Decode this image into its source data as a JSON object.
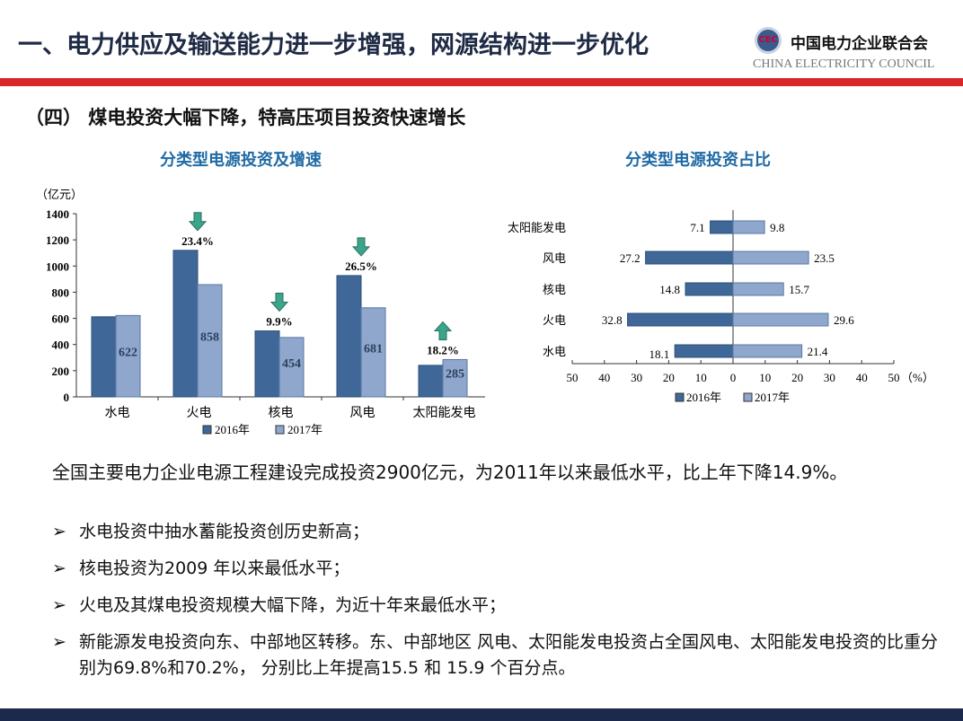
{
  "header": {
    "title": "一、电力供应及输送能力进一步增强，网源结构进一步优化",
    "logo_cn": "中国电力企业联合会",
    "logo_en": "CHINA ELECTRICITY COUNCIL",
    "logo_seal": "CEC"
  },
  "subtitle": "（四） 煤电投资大幅下降，特高压项目投资快速增长",
  "colors": {
    "s2016": "#3f6898",
    "s2017": "#8fa7cc",
    "arrow": "#3aa58a",
    "accent": "#d9262b",
    "title_blue": "#1f6aa5"
  },
  "chart_data": [
    {
      "type": "bar",
      "title": "分类型电源投资及增速",
      "ylabel": "（亿元）",
      "ylim": [
        0,
        1400
      ],
      "yticks": [
        "0",
        "200",
        "400",
        "600",
        "800",
        "1000",
        "1200",
        "1400"
      ],
      "categories": [
        "水电",
        "火电",
        "核电",
        "风电",
        "太阳能发电"
      ],
      "series": [
        {
          "name": "2016年",
          "values": [
            612,
            1120,
            504,
            927,
            241
          ]
        },
        {
          "name": "2017年",
          "values": [
            622,
            858,
            454,
            681,
            285
          ],
          "labels": [
            "622",
            "858",
            "454",
            "681",
            "285"
          ]
        }
      ],
      "annotations": [
        null,
        {
          "text": "23.4%",
          "arrow": "down"
        },
        {
          "text": "9.9%",
          "arrow": "down"
        },
        {
          "text": "26.5%",
          "arrow": "down"
        },
        {
          "text": "18.2%",
          "arrow": "up"
        }
      ],
      "legend": "bottom"
    },
    {
      "type": "bar",
      "orientation": "horizontal-diverging",
      "title": "分类型电源投资占比",
      "unit": "（%）",
      "xlim": [
        -50,
        50
      ],
      "xticks": [
        "50",
        "40",
        "30",
        "20",
        "10",
        "0",
        "10",
        "20",
        "30",
        "40",
        "50"
      ],
      "categories": [
        "太阳能发电",
        "风电",
        "核电",
        "火电",
        "水电"
      ],
      "series": [
        {
          "name": "2016年",
          "values": [
            7.1,
            27.2,
            14.8,
            32.8,
            18.1
          ],
          "labels": [
            "7.1",
            "27.2",
            "14.8",
            "32.8",
            "18.1"
          ]
        },
        {
          "name": "2017年",
          "values": [
            9.8,
            23.5,
            15.7,
            29.6,
            21.4
          ],
          "labels": [
            "9.8",
            "23.5",
            "15.7",
            "29.6",
            "21.4"
          ]
        }
      ],
      "legend": "bottom"
    }
  ],
  "body": {
    "text": "全国主要电力企业电源工程建设完成投资2900亿元，为2011年以来最低水平，比上年下降14.9%。",
    "marker": "➢",
    "bullets": [
      "水电投资中抽水蓄能投资创历史新高；",
      "核电投资为2009 年以来最低水平；",
      "火电及其煤电投资规模大幅下降，为近十年来最低水平；",
      "新能源发电投资向东、中部地区转移。东、中部地区 风电、太阳能发电投资占全国风电、太阳能发电投资的比重分别为69.8%和70.2%， 分别比上年提高15.5 和 15.9 个百分点。"
    ]
  }
}
